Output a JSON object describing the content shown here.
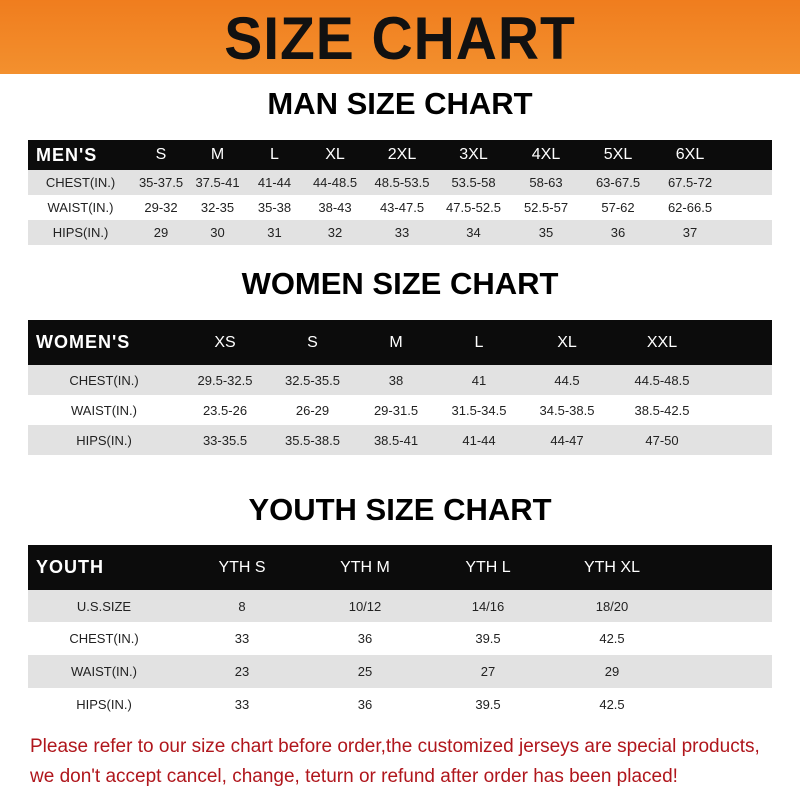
{
  "banner_title": "SIZE CHART",
  "men": {
    "title": "MAN SIZE CHART",
    "header": [
      "MEN'S",
      "S",
      "M",
      "L",
      "XL",
      "2XL",
      "3XL",
      "4XL",
      "5XL",
      "6XL"
    ],
    "rows": [
      [
        "CHEST(IN.)",
        "35-37.5",
        "37.5-41",
        "41-44",
        "44-48.5",
        "48.5-53.5",
        "53.5-58",
        "58-63",
        "63-67.5",
        "67.5-72"
      ],
      [
        "WAIST(IN.)",
        "29-32",
        "32-35",
        "35-38",
        "38-43",
        "43-47.5",
        "47.5-52.5",
        "52.5-57",
        "57-62",
        "62-66.5"
      ],
      [
        "HIPS(IN.)",
        "29",
        "30",
        "31",
        "32",
        "33",
        "34",
        "35",
        "36",
        "37"
      ]
    ]
  },
  "women": {
    "title": "WOMEN SIZE CHART",
    "header": [
      "WOMEN'S",
      "XS",
      "S",
      "M",
      "L",
      "XL",
      "XXL"
    ],
    "rows": [
      [
        "CHEST(IN.)",
        "29.5-32.5",
        "32.5-35.5",
        "38",
        "41",
        "44.5",
        "44.5-48.5"
      ],
      [
        "WAIST(IN.)",
        "23.5-26",
        "26-29",
        "29-31.5",
        "31.5-34.5",
        "34.5-38.5",
        "38.5-42.5"
      ],
      [
        "HIPS(IN.)",
        "33-35.5",
        "35.5-38.5",
        "38.5-41",
        "41-44",
        "44-47",
        "47-50"
      ]
    ]
  },
  "youth": {
    "title": "YOUTH SIZE CHART",
    "header": [
      "YOUTH",
      "YTH S",
      "YTH M",
      "YTH L",
      "YTH XL"
    ],
    "rows": [
      [
        "U.S.SIZE",
        "8",
        "10/12",
        "14/16",
        "18/20"
      ],
      [
        "CHEST(IN.)",
        "33",
        "36",
        "39.5",
        "42.5"
      ],
      [
        "WAIST(IN.)",
        "23",
        "25",
        "27",
        "29"
      ],
      [
        "HIPS(IN.)",
        "33",
        "36",
        "39.5",
        "42.5"
      ]
    ]
  },
  "notice": {
    "line1": "Please refer to our size chart before order,the customized jerseys are special products,",
    "line2": "we don't accept cancel, change, teturn or refund after order has been placed!"
  },
  "colors": {
    "banner": "#f07d1e",
    "header_row": "#0c0c0c",
    "stripe": "#e2e2e2",
    "notice": "#b0161c"
  }
}
